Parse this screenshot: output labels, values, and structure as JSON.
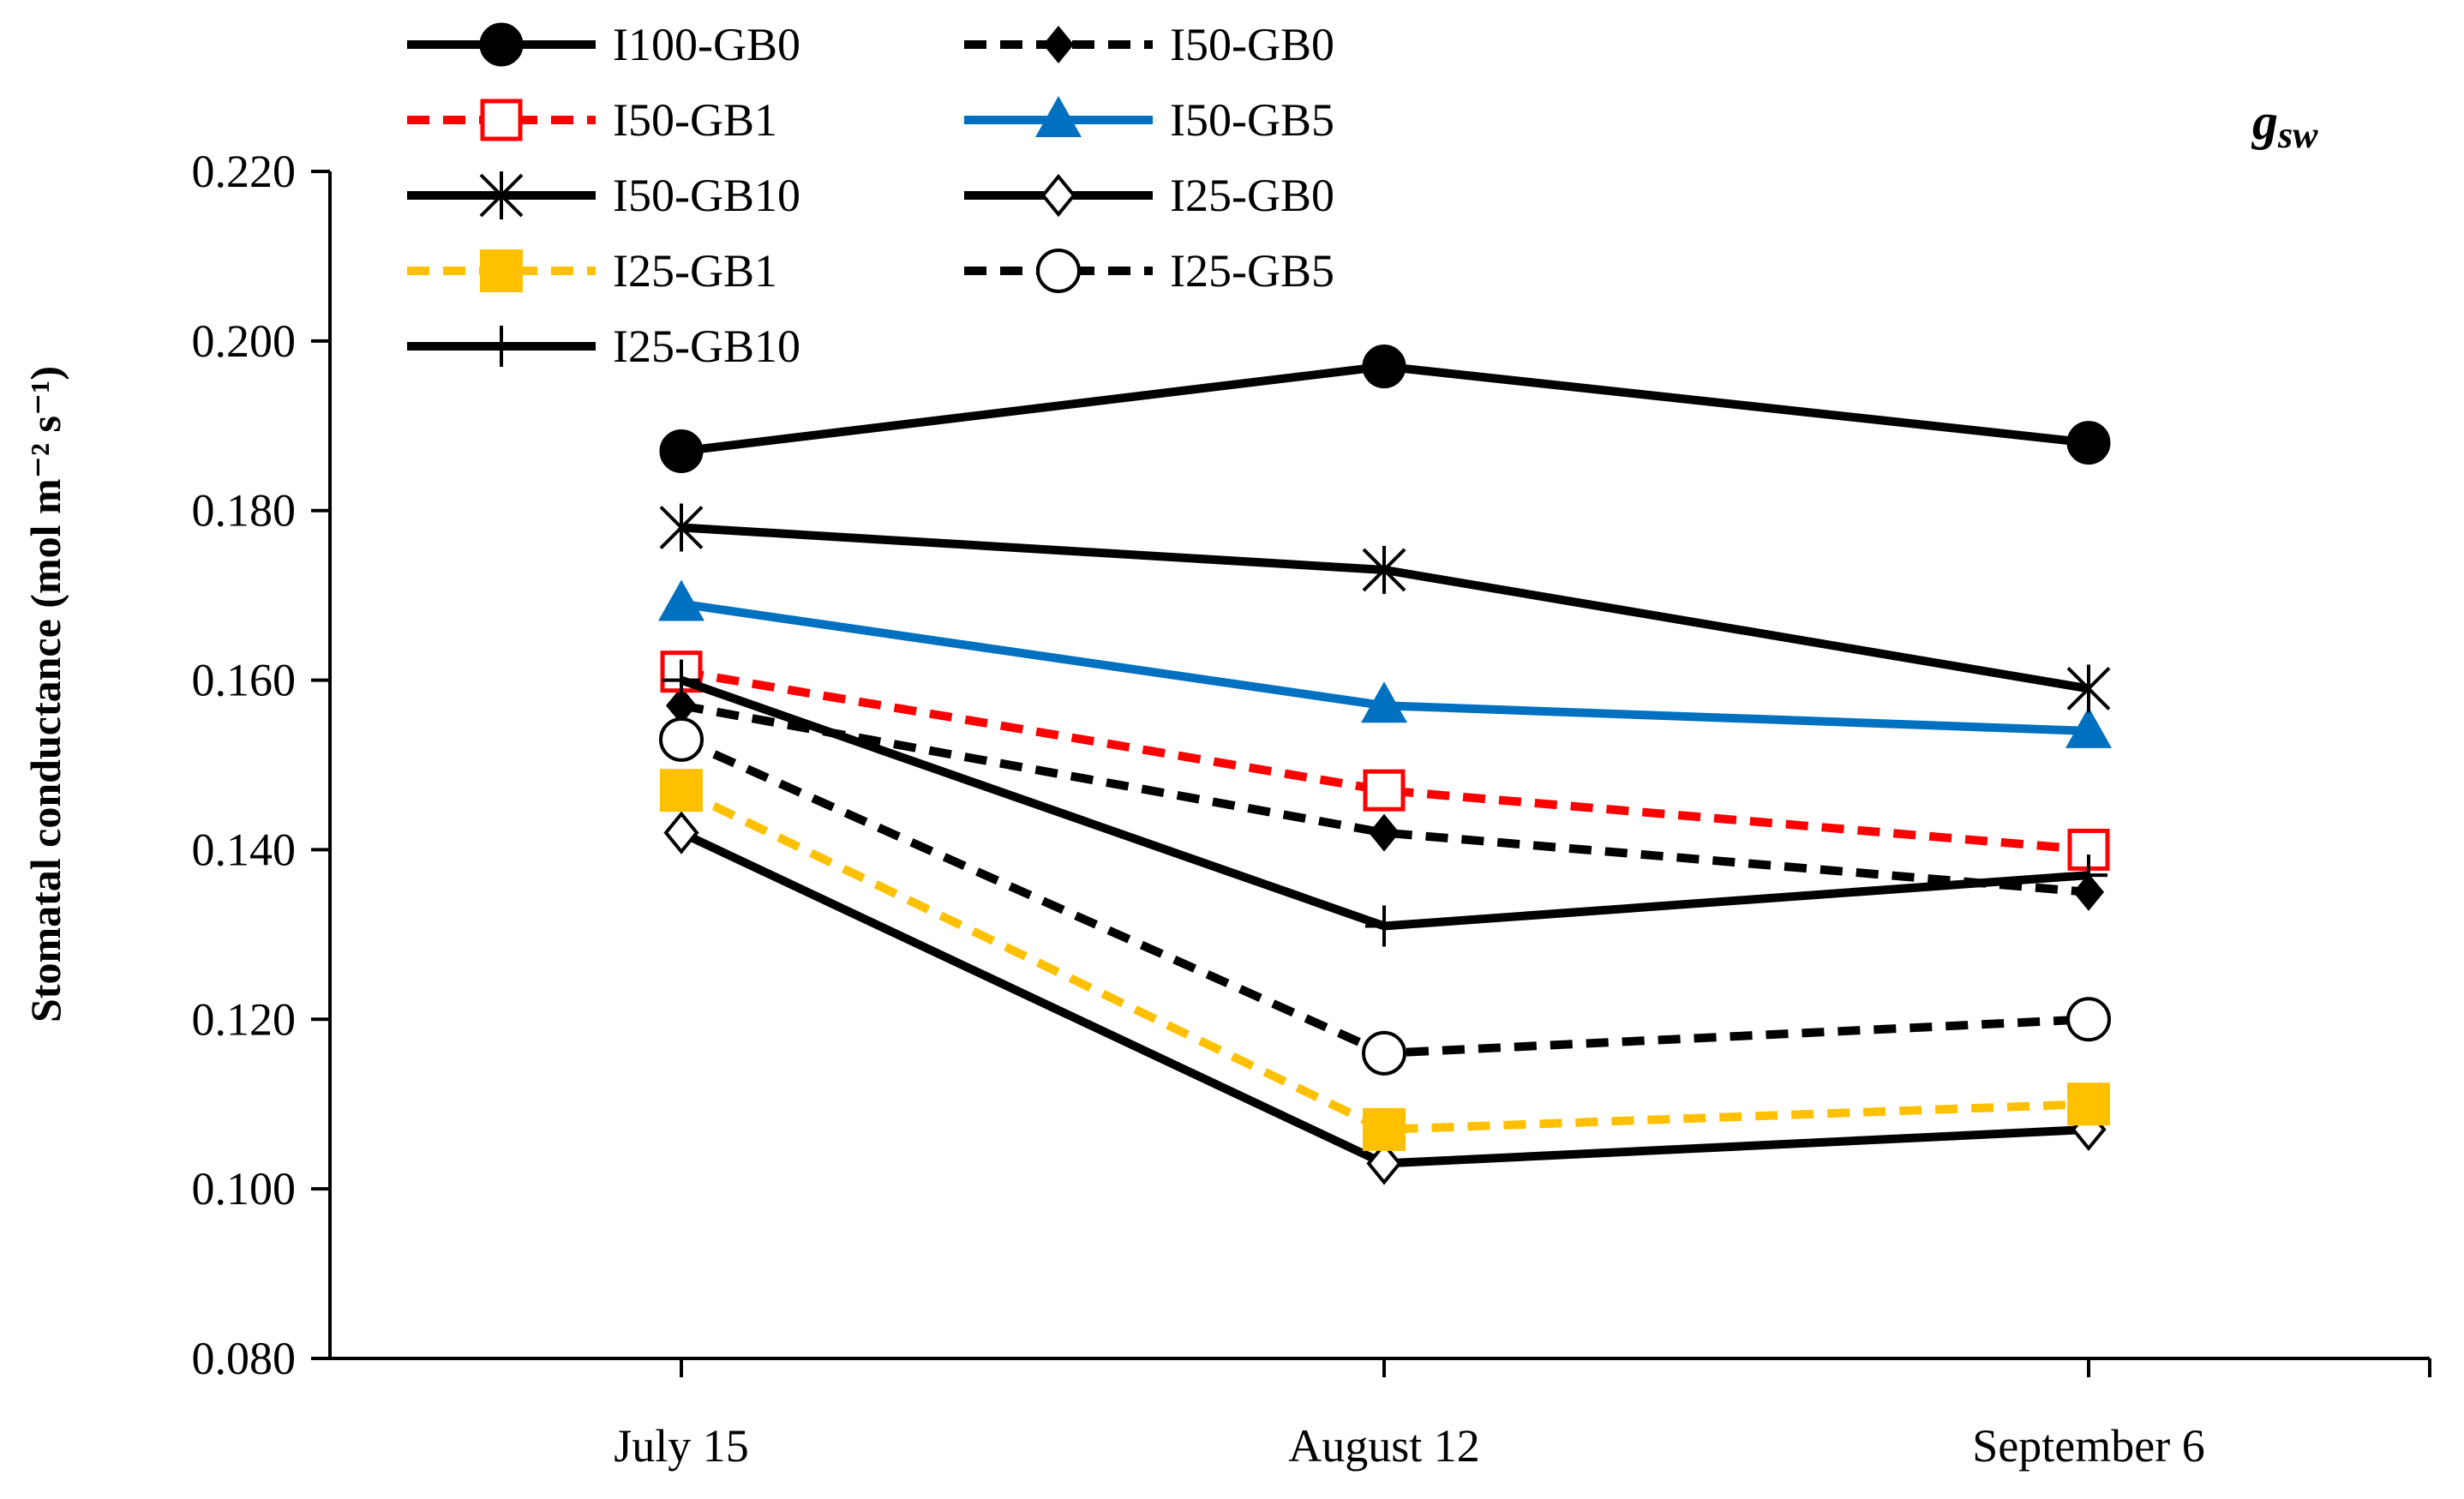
{
  "chart_data": {
    "type": "line",
    "panel_label": "g",
    "panel_label_subscript": "sw",
    "ylabel": "Stomatal conductance (mol m⁻² s⁻¹)",
    "xlabel": "",
    "categories": [
      "July 15",
      "August 12",
      "September 6"
    ],
    "ylim": [
      0.08,
      0.22
    ],
    "yticks": [
      "0.080",
      "0.100",
      "0.120",
      "0.140",
      "0.160",
      "0.180",
      "0.200",
      "0.220"
    ],
    "legend_position": "top-left",
    "series": [
      {
        "name": "I100-GB0",
        "values": [
          0.187,
          0.197,
          0.188
        ],
        "color": "#000000",
        "dash": "solid",
        "marker": "circle-filled"
      },
      {
        "name": "I50-GB0",
        "values": [
          0.157,
          0.142,
          0.135
        ],
        "color": "#000000",
        "dash": "dashed",
        "marker": "diamond-filled"
      },
      {
        "name": "I50-GB1",
        "values": [
          0.161,
          0.147,
          0.14
        ],
        "color": "#ff0000",
        "dash": "dashed",
        "marker": "square-open"
      },
      {
        "name": "I50-GB5",
        "values": [
          0.169,
          0.157,
          0.154
        ],
        "color": "#0070c0",
        "dash": "solid",
        "marker": "triangle-filled"
      },
      {
        "name": "I50-GB10",
        "values": [
          0.178,
          0.173,
          0.159
        ],
        "color": "#000000",
        "dash": "solid",
        "marker": "asterisk"
      },
      {
        "name": "I25-GB0",
        "values": [
          0.142,
          0.103,
          0.107
        ],
        "color": "#000000",
        "dash": "solid",
        "marker": "diamond-open"
      },
      {
        "name": "I25-GB1",
        "values": [
          0.147,
          0.107,
          0.11
        ],
        "color": "#ffc000",
        "dash": "dashed",
        "marker": "square-filled"
      },
      {
        "name": "I25-GB5",
        "values": [
          0.153,
          0.116,
          0.12
        ],
        "color": "#000000",
        "dash": "dashed",
        "marker": "circle-open"
      },
      {
        "name": "I25-GB10",
        "values": [
          0.16,
          0.131,
          0.137
        ],
        "color": "#000000",
        "dash": "solid",
        "marker": "plus"
      }
    ]
  }
}
